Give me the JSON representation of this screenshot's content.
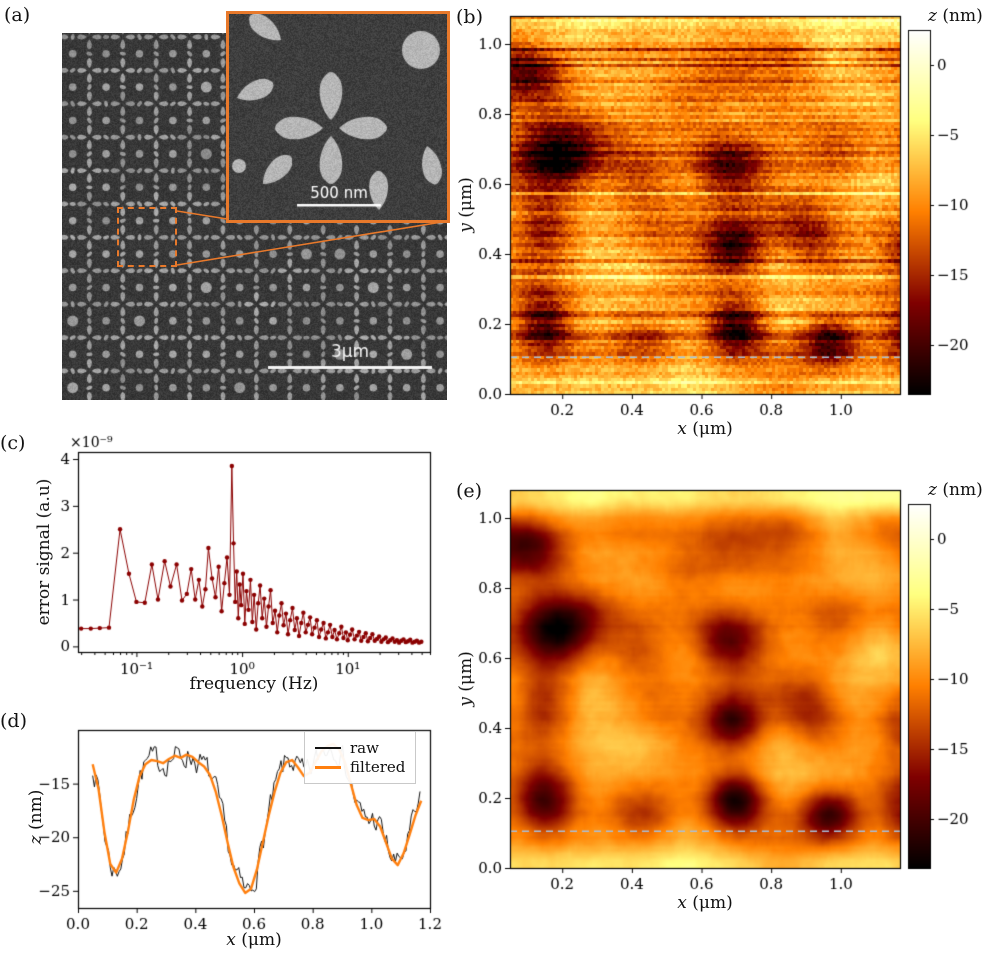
{
  "panels": {
    "a": {
      "label": "(a)",
      "scalebar_main": "3μm",
      "scalebar_inset": "500 nm"
    },
    "b": {
      "label": "(b)",
      "xlabel_var": "x",
      "xlabel_unit": " (μm)",
      "ylabel_var": "y",
      "ylabel_unit": " (μm)",
      "cbar_var": "z",
      "cbar_unit": " (nm)"
    },
    "c": {
      "label": "(c)",
      "xlabel": "frequency (Hz)",
      "ylabel": "error signal (a.u)",
      "offset_text": "×10⁻⁹"
    },
    "d": {
      "label": "(d)",
      "xlabel_var": "x",
      "xlabel_unit": " (μm)",
      "ylabel_var": "z",
      "ylabel_unit": " (nm)",
      "legend": [
        "raw",
        "filtered"
      ]
    },
    "e": {
      "label": "(e)",
      "xlabel_var": "x",
      "xlabel_unit": " (μm)",
      "ylabel_var": "y",
      "ylabel_unit": " (μm)",
      "cbar_var": "z",
      "cbar_unit": " (nm)"
    }
  },
  "colors": {
    "inset_border": "#e8792b",
    "connector": "#e8792b",
    "dashed_region": "#e8792b",
    "spectrum": "#8b0000",
    "profile_raw": "#111111",
    "profile_filtered": "#ff7f0e",
    "scan_line": "#a7c0dd"
  },
  "chart_data": [
    {
      "panel": "b",
      "type": "heatmap",
      "colorbar_title": "z (nm)",
      "x_range": [
        0.05,
        1.17
      ],
      "y_range": [
        0,
        1.08
      ],
      "x_ticks": [
        0.2,
        0.4,
        0.6,
        0.8,
        1.0
      ],
      "x_tick_labels": [
        "0.2",
        "0.4",
        "0.6",
        "0.8",
        "1.0"
      ],
      "y_ticks": [
        0,
        0.2,
        0.4,
        0.6,
        0.8,
        1.0
      ],
      "y_tick_labels": [
        "0.0",
        "0.2",
        "0.4",
        "0.6",
        "0.8",
        "1.0"
      ],
      "z_range": [
        -23.5,
        2.5
      ],
      "colorbar_ticks": [
        0,
        -5,
        -10,
        -15,
        -20
      ],
      "colorbar_tick_labels": [
        "0",
        "−5",
        "−10",
        "−15",
        "−20"
      ],
      "colormap": "afmhot",
      "dashed_line_y": 0.105,
      "dashed_line_color": "#a7c0dd",
      "smooth": false,
      "seed_base": 11,
      "seed_noise": 23,
      "row_noise": 2.2,
      "pixel_noise": 1.6
    },
    {
      "panel": "c",
      "type": "line_scatter",
      "x_scale": "log",
      "xlabel": "frequency (Hz)",
      "ylabel": "error signal (a.u)",
      "offset_text": "×10⁻⁹",
      "x_range": [
        0.028,
        60
      ],
      "y_range": [
        -0.12,
        4.15
      ],
      "x_ticks": [
        0.1,
        1,
        10
      ],
      "x_tick_labels": [
        "10⁻¹",
        "10⁰",
        "10¹"
      ],
      "y_ticks": [
        0,
        1,
        2,
        3,
        4
      ],
      "y_tick_labels": [
        "0",
        "1",
        "2",
        "3",
        "4"
      ],
      "color": "#8b0000",
      "x": [
        0.03,
        0.037,
        0.045,
        0.055,
        0.07,
        0.085,
        0.1,
        0.12,
        0.14,
        0.16,
        0.185,
        0.21,
        0.24,
        0.27,
        0.3,
        0.33,
        0.36,
        0.39,
        0.42,
        0.45,
        0.48,
        0.52,
        0.56,
        0.6,
        0.64,
        0.68,
        0.72,
        0.76,
        0.8,
        0.83,
        0.86,
        0.89,
        0.92,
        0.95,
        0.98,
        1.02,
        1.06,
        1.1,
        1.15,
        1.2,
        1.25,
        1.3,
        1.36,
        1.42,
        1.48,
        1.55,
        1.62,
        1.7,
        1.78,
        1.86,
        1.95,
        2.05,
        2.15,
        2.25,
        2.36,
        2.47,
        2.6,
        2.72,
        2.85,
        3.0,
        3.15,
        3.3,
        3.46,
        3.63,
        3.8,
        4.0,
        4.2,
        4.4,
        4.6,
        4.85,
        5.1,
        5.35,
        5.6,
        5.9,
        6.2,
        6.5,
        6.8,
        7.15,
        7.5,
        7.9,
        8.3,
        8.7,
        9.1,
        9.6,
        10.0,
        10.5,
        11.0,
        11.6,
        12.2,
        12.8,
        13.4,
        14.1,
        14.8,
        15.5,
        16.3,
        17.1,
        18.0,
        18.9,
        19.8,
        20.8,
        21.8,
        22.9,
        24.0,
        25.2,
        26.5,
        27.8,
        29.2,
        30.6,
        32.1,
        33.7,
        35.4,
        37.1,
        39.0,
        40.9,
        43.0,
        45.1,
        47.3,
        49.7
      ],
      "y": [
        0.38,
        0.38,
        0.39,
        0.4,
        2.5,
        1.55,
        0.95,
        0.93,
        1.75,
        1.0,
        1.82,
        1.28,
        1.75,
        0.98,
        1.12,
        1.65,
        1.0,
        1.42,
        0.85,
        1.22,
        2.1,
        1.45,
        1.05,
        1.7,
        0.75,
        1.35,
        1.9,
        1.1,
        3.85,
        2.2,
        0.95,
        1.6,
        0.6,
        1.32,
        0.88,
        1.55,
        0.48,
        1.18,
        0.78,
        1.42,
        0.52,
        1.1,
        0.36,
        0.92,
        1.3,
        0.6,
        1.02,
        0.42,
        0.85,
        1.2,
        0.5,
        0.76,
        0.3,
        0.66,
        0.92,
        0.45,
        0.7,
        0.26,
        0.56,
        0.82,
        0.35,
        0.6,
        0.22,
        0.5,
        0.72,
        0.3,
        0.46,
        0.62,
        0.26,
        0.4,
        0.56,
        0.2,
        0.36,
        0.5,
        0.17,
        0.3,
        0.46,
        0.2,
        0.35,
        0.15,
        0.28,
        0.42,
        0.18,
        0.3,
        0.13,
        0.25,
        0.36,
        0.15,
        0.23,
        0.31,
        0.12,
        0.2,
        0.28,
        0.11,
        0.18,
        0.26,
        0.12,
        0.16,
        0.21,
        0.1,
        0.15,
        0.19,
        0.09,
        0.13,
        0.17,
        0.1,
        0.13,
        0.08,
        0.12,
        0.15,
        0.09,
        0.11,
        0.14,
        0.08,
        0.1,
        0.12,
        0.08,
        0.1
      ]
    },
    {
      "panel": "d",
      "type": "line",
      "x_range": [
        0,
        1.2
      ],
      "y_range": [
        -26.6,
        -10
      ],
      "x_ticks": [
        0,
        0.2,
        0.4,
        0.6,
        0.8,
        1.0,
        1.2
      ],
      "x_tick_labels": [
        "0.0",
        "0.2",
        "0.4",
        "0.6",
        "0.8",
        "1.0",
        "1.2"
      ],
      "y_ticks": [
        -15,
        -20,
        -25
      ],
      "y_tick_labels": [
        "−15",
        "−20",
        "−25"
      ],
      "legend": [
        "raw",
        "filtered"
      ],
      "series": [
        {
          "name": "raw",
          "color": "#111111",
          "line_width": 1,
          "derived": "filtered_plus_noise",
          "noise_amplitude": 1.2,
          "seed": 7
        },
        {
          "name": "filtered",
          "color": "#ff7f0e",
          "line_width": 2.4,
          "x": [
            0.05,
            0.07,
            0.09,
            0.11,
            0.13,
            0.15,
            0.17,
            0.19,
            0.21,
            0.23,
            0.25,
            0.27,
            0.29,
            0.31,
            0.33,
            0.35,
            0.37,
            0.39,
            0.41,
            0.43,
            0.45,
            0.47,
            0.49,
            0.51,
            0.53,
            0.55,
            0.57,
            0.59,
            0.61,
            0.63,
            0.65,
            0.67,
            0.69,
            0.71,
            0.73,
            0.75,
            0.77,
            0.79,
            0.81,
            0.83,
            0.85,
            0.87,
            0.89,
            0.91,
            0.93,
            0.95,
            0.97,
            0.99,
            1.01,
            1.03,
            1.05,
            1.07,
            1.09,
            1.11,
            1.13,
            1.15,
            1.17
          ],
          "y": [
            -13.2,
            -15.5,
            -19.5,
            -22.5,
            -23.3,
            -22.0,
            -19.5,
            -16.5,
            -14.3,
            -13.2,
            -12.8,
            -12.9,
            -13.1,
            -12.7,
            -12.4,
            -12.6,
            -12.3,
            -12.5,
            -13.0,
            -13.4,
            -14.2,
            -15.8,
            -18.0,
            -20.5,
            -22.8,
            -24.3,
            -25.2,
            -24.8,
            -23.0,
            -20.5,
            -18.0,
            -15.8,
            -14.0,
            -13.0,
            -12.8,
            -13.5,
            -14.3,
            -14.0,
            -13.0,
            -12.0,
            -11.5,
            -11.3,
            -11.8,
            -13.0,
            -15.0,
            -17.0,
            -18.2,
            -18.4,
            -18.3,
            -19.0,
            -20.5,
            -22.0,
            -22.6,
            -21.5,
            -19.8,
            -18.0,
            -16.6
          ]
        }
      ]
    },
    {
      "panel": "e",
      "type": "heatmap",
      "colorbar_title": "z (nm)",
      "x_range": [
        0.05,
        1.17
      ],
      "y_range": [
        0,
        1.08
      ],
      "x_ticks": [
        0.2,
        0.4,
        0.6,
        0.8,
        1.0
      ],
      "x_tick_labels": [
        "0.2",
        "0.4",
        "0.6",
        "0.8",
        "1.0"
      ],
      "y_ticks": [
        0,
        0.2,
        0.4,
        0.6,
        0.8,
        1.0
      ],
      "y_tick_labels": [
        "0.0",
        "0.2",
        "0.4",
        "0.6",
        "0.8",
        "1.0"
      ],
      "z_range": [
        -23.5,
        2.5
      ],
      "colorbar_ticks": [
        0,
        -5,
        -10,
        -15,
        -20
      ],
      "colorbar_tick_labels": [
        "0",
        "−5",
        "−10",
        "−15",
        "−20"
      ],
      "colormap": "afmhot",
      "dashed_line_y": 0.105,
      "dashed_line_color": "#a7c0dd",
      "smooth": true,
      "seed_base": 11,
      "seed_noise": 37,
      "row_noise": 0.5,
      "pixel_noise": 0.9
    }
  ]
}
